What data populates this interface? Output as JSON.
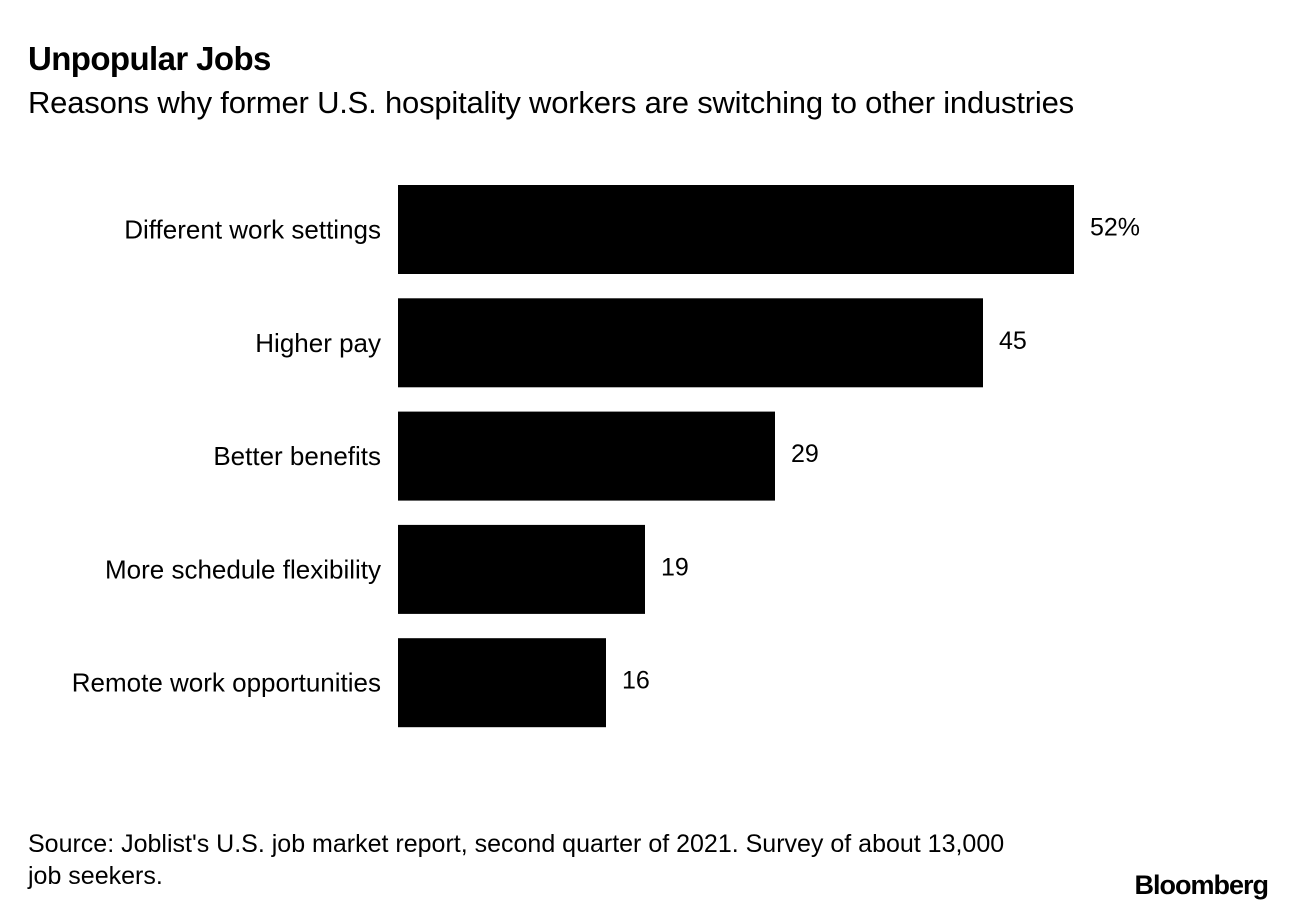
{
  "chart_data": {
    "type": "bar",
    "orientation": "horizontal",
    "title": "Unpopular Jobs",
    "subtitle": "Reasons why former U.S. hospitality workers are switching to other industries",
    "categories": [
      "Different work settings",
      "Higher pay",
      "Better benefits",
      "More schedule flexibility",
      "Remote work opportunities"
    ],
    "values": [
      52,
      45,
      29,
      19,
      16
    ],
    "value_labels": [
      "52%",
      "45",
      "29",
      "19",
      "16"
    ],
    "unit": "%",
    "xlim": [
      0,
      52
    ],
    "grid": false,
    "bar_color": "#000000"
  },
  "footer": {
    "source": "Source: Joblist's U.S. job market report, second quarter of 2021. Survey of about 13,000 job seekers.",
    "brand": "Bloomberg"
  }
}
